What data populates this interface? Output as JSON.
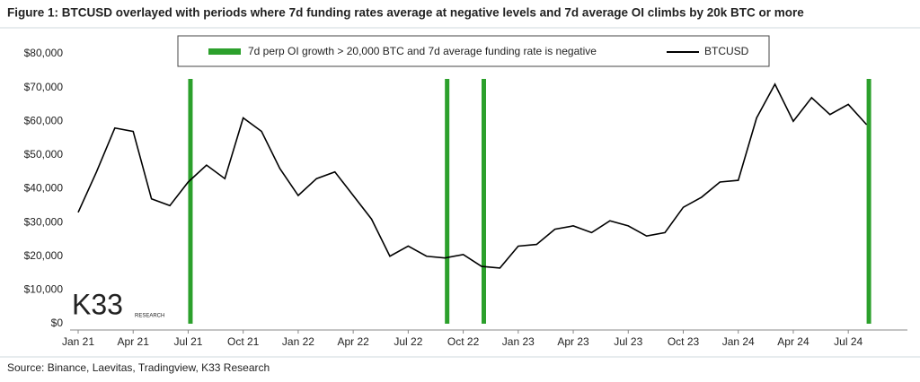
{
  "chart_data": {
    "type": "line",
    "title": "Figure 1: BTCUSD overlayed with periods where 7d funding rates average at negative levels and 7d average OI climbs by 20k BTC or more",
    "source": "Source: Binance, Laevitas, Tradingview, K33 Research",
    "logo": {
      "name": "K33",
      "sub": "RESEARCH"
    },
    "x": [
      "2021-01",
      "2021-02",
      "2021-03",
      "2021-04",
      "2021-05",
      "2021-06",
      "2021-07",
      "2021-08",
      "2021-09",
      "2021-10",
      "2021-11",
      "2021-12",
      "2022-01",
      "2022-02",
      "2022-03",
      "2022-04",
      "2022-05",
      "2022-06",
      "2022-07",
      "2022-08",
      "2022-09",
      "2022-10",
      "2022-11",
      "2022-12",
      "2023-01",
      "2023-02",
      "2023-03",
      "2023-04",
      "2023-05",
      "2023-06",
      "2023-07",
      "2023-08",
      "2023-09",
      "2023-10",
      "2023-11",
      "2023-12",
      "2024-01",
      "2024-02",
      "2024-03",
      "2024-04",
      "2024-05",
      "2024-06",
      "2024-07",
      "2024-08"
    ],
    "series": [
      {
        "name": "BTCUSD",
        "color": "#000000",
        "values": [
          33000,
          45000,
          58000,
          57000,
          37000,
          35000,
          42000,
          47000,
          43000,
          61000,
          57000,
          46000,
          38000,
          43000,
          45000,
          38000,
          31000,
          20000,
          23000,
          20000,
          19500,
          20500,
          17000,
          16500,
          23000,
          23500,
          28000,
          29000,
          27000,
          30500,
          29000,
          26000,
          27000,
          34500,
          37500,
          42000,
          42500,
          61000,
          71000,
          60000,
          67000,
          62000,
          65000,
          59000
        ]
      }
    ],
    "periods": {
      "name": "7d perp OI growth > 20,000 BTC and 7d average funding rate is negative",
      "color": "#2ca02c",
      "x": [
        "2021-07",
        "2022-09",
        "2022-11",
        "2024-08"
      ]
    },
    "xlim": [
      "2021-01",
      "2024-09"
    ],
    "xticks": [
      {
        "value": "2021-01",
        "label": "Jan 21"
      },
      {
        "value": "2021-04",
        "label": "Apr 21"
      },
      {
        "value": "2021-07",
        "label": "Jul 21"
      },
      {
        "value": "2021-10",
        "label": "Oct 21"
      },
      {
        "value": "2022-01",
        "label": "Jan 22"
      },
      {
        "value": "2022-04",
        "label": "Apr 22"
      },
      {
        "value": "2022-07",
        "label": "Jul 22"
      },
      {
        "value": "2022-10",
        "label": "Oct 22"
      },
      {
        "value": "2023-01",
        "label": "Jan 23"
      },
      {
        "value": "2023-04",
        "label": "Apr 23"
      },
      {
        "value": "2023-07",
        "label": "Jul 23"
      },
      {
        "value": "2023-10",
        "label": "Oct 23"
      },
      {
        "value": "2024-01",
        "label": "Jan 24"
      },
      {
        "value": "2024-04",
        "label": "Apr 24"
      },
      {
        "value": "2024-07",
        "label": "Jul 24"
      }
    ],
    "ylim": [
      0,
      80000
    ],
    "yticks": [
      {
        "value": 0,
        "label": "$0"
      },
      {
        "value": 10000,
        "label": "$10,000"
      },
      {
        "value": 20000,
        "label": "$20,000"
      },
      {
        "value": 30000,
        "label": "$30,000"
      },
      {
        "value": 40000,
        "label": "$40,000"
      },
      {
        "value": 50000,
        "label": "$50,000"
      },
      {
        "value": 60000,
        "label": "$60,000"
      },
      {
        "value": 70000,
        "label": "$70,000"
      },
      {
        "value": 80000,
        "label": "$80,000"
      }
    ]
  }
}
